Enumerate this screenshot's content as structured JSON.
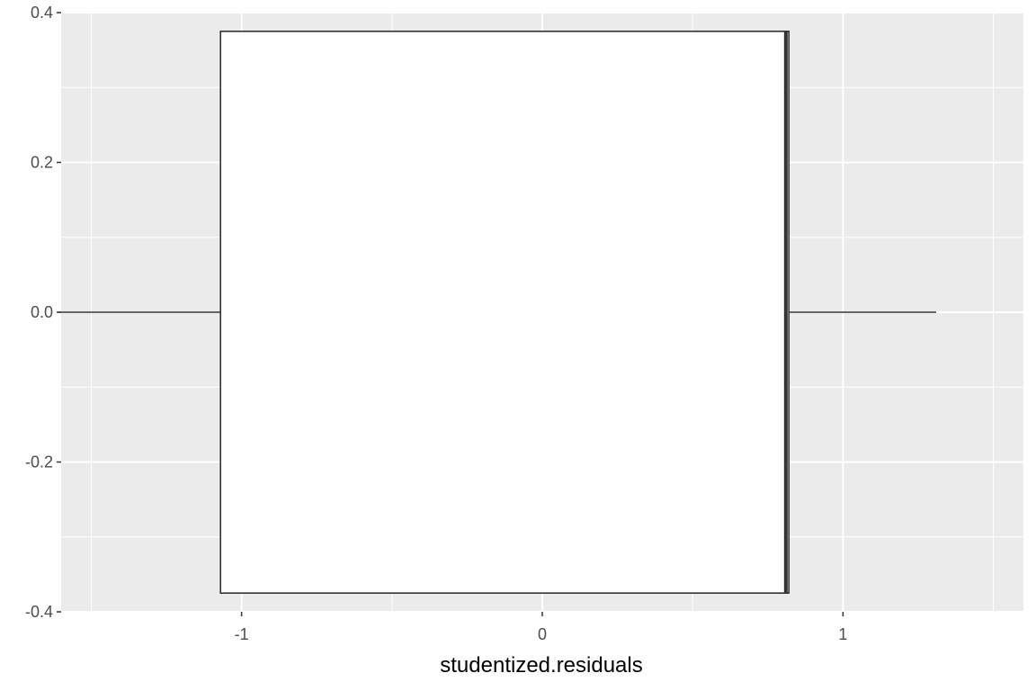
{
  "chart_data": {
    "type": "boxplot",
    "title": "",
    "xlabel": "studentized.residuals",
    "ylabel": "",
    "xlim": [
      -1.6,
      1.6
    ],
    "ylim": [
      -0.4,
      0.4
    ],
    "x_ticks": [
      -1,
      0,
      1
    ],
    "x_tick_labels": [
      "-1",
      "0",
      "1"
    ],
    "y_ticks": [
      -0.4,
      -0.2,
      0.0,
      0.2,
      0.4
    ],
    "y_tick_labels": [
      "-0.4",
      "-0.2",
      "0.0",
      "0.2",
      "0.4"
    ],
    "grid": true,
    "box": {
      "whisker_low": -1.61,
      "q1": -1.07,
      "median": 0.81,
      "q3": 0.82,
      "whisker_high": 1.31,
      "y_center": 0.0,
      "half_height": 0.375
    },
    "colors": {
      "panel_background": "#EBEBEB",
      "grid": "#FFFFFF",
      "box_fill": "#FFFFFF",
      "box_outline": "#333333"
    }
  }
}
